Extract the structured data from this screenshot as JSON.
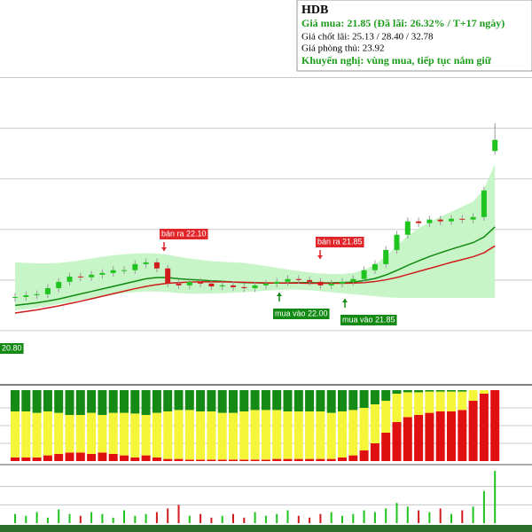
{
  "chart_data": [
    {
      "type": "candlestick",
      "open": [
        21.3,
        21.33,
        21.4,
        21.44,
        21.68,
        21.93,
        22.14,
        22.11,
        22.21,
        22.28,
        22.39,
        22.39,
        22.63,
        22.7,
        22.46,
        21.86,
        21.79,
        21.93,
        21.86,
        21.75,
        21.79,
        21.72,
        21.68,
        21.79,
        21.86,
        21.93,
        22.04,
        22.0,
        21.93,
        21.79,
        21.86,
        21.93,
        22.04,
        22.39,
        22.63,
        23.19,
        23.79,
        24.32,
        24.25,
        24.39,
        24.32,
        24.42,
        24.39,
        24.49,
        27.1
      ],
      "high": [
        21.48,
        21.55,
        21.59,
        21.83,
        22.08,
        22.29,
        22.29,
        22.36,
        22.43,
        22.54,
        22.54,
        22.78,
        22.85,
        22.85,
        22.61,
        22.01,
        22.08,
        22.08,
        22.01,
        21.94,
        21.94,
        21.87,
        21.94,
        22.01,
        22.08,
        22.19,
        22.19,
        22.15,
        22.08,
        22.01,
        22.08,
        22.19,
        22.54,
        22.78,
        23.34,
        23.94,
        24.47,
        24.47,
        24.54,
        24.54,
        24.57,
        24.57,
        24.64,
        25.69,
        28.2
      ],
      "low": [
        21.15,
        21.18,
        21.25,
        21.29,
        21.53,
        21.78,
        21.96,
        21.96,
        22.06,
        22.13,
        22.24,
        22.24,
        22.48,
        22.31,
        21.71,
        21.64,
        21.64,
        21.71,
        21.6,
        21.6,
        21.57,
        21.53,
        21.53,
        21.64,
        21.71,
        21.78,
        21.85,
        21.78,
        21.64,
        21.64,
        21.71,
        21.78,
        21.89,
        22.24,
        22.48,
        23.04,
        23.64,
        24.1,
        24.1,
        24.17,
        24.17,
        24.24,
        24.24,
        24.34,
        26.95
      ],
      "close": [
        21.33,
        21.4,
        21.44,
        21.68,
        21.93,
        22.14,
        22.11,
        22.21,
        22.28,
        22.39,
        22.39,
        22.63,
        22.7,
        22.46,
        21.86,
        21.79,
        21.93,
        21.86,
        21.75,
        21.79,
        21.72,
        21.68,
        21.79,
        21.86,
        21.93,
        22.04,
        22.0,
        21.93,
        21.79,
        21.86,
        21.93,
        22.04,
        22.39,
        22.63,
        23.19,
        23.79,
        24.32,
        24.25,
        24.39,
        24.32,
        24.42,
        24.39,
        24.49,
        25.54,
        27.54
      ],
      "color_up": "#1fc41f",
      "color_down": "#d01c1c",
      "band": {
        "color": "#c8f5c8",
        "upper": [
          22.7,
          22.68,
          22.66,
          22.66,
          22.68,
          22.72,
          22.78,
          22.85,
          22.92,
          22.98,
          23.02,
          23.05,
          23.06,
          23.05,
          23.0,
          22.92,
          22.85,
          22.8,
          22.75,
          22.72,
          22.7,
          22.68,
          22.62,
          22.55,
          22.48,
          22.42,
          22.36,
          22.3,
          22.26,
          22.24,
          22.24,
          22.28,
          22.4,
          22.6,
          22.95,
          23.35,
          23.75,
          24.05,
          24.3,
          24.5,
          24.7,
          24.9,
          25.1,
          25.6,
          26.6
        ],
        "lower": [
          20.8,
          20.85,
          20.9,
          20.98,
          21.05,
          21.12,
          21.2,
          21.28,
          21.35,
          21.42,
          21.48,
          21.52,
          21.55,
          21.55,
          21.52,
          21.48,
          21.46,
          21.46,
          21.47,
          21.48,
          21.5,
          21.52,
          21.55,
          21.58,
          21.6,
          21.62,
          21.62,
          21.6,
          21.56,
          21.52,
          21.48,
          21.44,
          21.4,
          21.36,
          21.32,
          21.3,
          21.3,
          21.3,
          21.3,
          21.3,
          21.3,
          21.3,
          21.3,
          21.3,
          21.3
        ]
      },
      "lines": [
        {
          "color": "#108a10",
          "values": [
            21.0,
            21.05,
            21.1,
            21.17,
            21.25,
            21.35,
            21.45,
            21.55,
            21.65,
            21.75,
            21.85,
            21.95,
            22.05,
            22.1,
            22.1,
            22.05,
            22.02,
            22.0,
            21.97,
            21.95,
            21.92,
            21.9,
            21.89,
            21.88,
            21.88,
            21.89,
            21.9,
            21.9,
            21.89,
            21.89,
            21.9,
            21.92,
            21.98,
            22.06,
            22.2,
            22.38,
            22.58,
            22.76,
            22.93,
            23.08,
            23.22,
            23.35,
            23.48,
            23.7,
            24.1
          ]
        },
        {
          "color": "#d01c1c",
          "values": [
            20.7,
            20.76,
            20.82,
            20.9,
            20.98,
            21.07,
            21.16,
            21.26,
            21.36,
            21.46,
            21.56,
            21.66,
            21.75,
            21.82,
            21.87,
            21.9,
            21.92,
            21.93,
            21.93,
            21.93,
            21.92,
            21.91,
            21.9,
            21.89,
            21.88,
            21.88,
            21.88,
            21.87,
            21.87,
            21.87,
            21.87,
            21.88,
            21.9,
            21.94,
            22.01,
            22.1,
            22.22,
            22.34,
            22.46,
            22.58,
            22.7,
            22.81,
            22.92,
            23.08,
            23.35
          ]
        }
      ],
      "annotations": [
        {
          "text": "bán ra 22.10",
          "color": "#e0262a"
        },
        {
          "text": "bán ra 21.85",
          "color": "#e0262a"
        },
        {
          "text": "mua vào 22.00",
          "color": "#138a13"
        },
        {
          "text": "mua vào 21.85",
          "color": "#138a13"
        },
        {
          "text": "20.80",
          "color": "#138a13"
        }
      ],
      "ylim": [
        18,
        31
      ],
      "yticks": [
        20,
        22,
        24,
        26,
        28,
        30
      ],
      "grid": true
    },
    {
      "type": "stacked_bar",
      "series": [
        {
          "color": "#e01010",
          "values": [
            5,
            5,
            5,
            8,
            10,
            12,
            12,
            10,
            12,
            10,
            8,
            5,
            8,
            5,
            3,
            3,
            2,
            2,
            2,
            2,
            2,
            2,
            2,
            2,
            3,
            3,
            3,
            3,
            3,
            3,
            5,
            8,
            15,
            25,
            40,
            55,
            62,
            65,
            68,
            70,
            70,
            72,
            85,
            95,
            100
          ]
        },
        {
          "color": "#f5f53a",
          "values": [
            65,
            65,
            63,
            62,
            58,
            53,
            53,
            58,
            53,
            58,
            60,
            62,
            57,
            63,
            67,
            69,
            70,
            68,
            68,
            66,
            66,
            68,
            70,
            70,
            69,
            67,
            67,
            67,
            67,
            65,
            65,
            64,
            60,
            55,
            45,
            40,
            35,
            32,
            30,
            28,
            28,
            26,
            15,
            5,
            0
          ]
        },
        {
          "color": "#158a15",
          "values": [
            30,
            30,
            32,
            30,
            32,
            35,
            35,
            32,
            35,
            32,
            32,
            33,
            35,
            32,
            30,
            28,
            28,
            30,
            30,
            32,
            32,
            30,
            28,
            28,
            28,
            30,
            30,
            30,
            30,
            32,
            30,
            28,
            25,
            20,
            15,
            5,
            3,
            3,
            2,
            2,
            2,
            2,
            0,
            0,
            0
          ]
        }
      ],
      "ylim": [
        0,
        100
      ],
      "yticks": [
        25,
        50,
        75
      ],
      "grid": true
    },
    {
      "type": "volume",
      "values": [
        10,
        8,
        12,
        6,
        15,
        10,
        8,
        12,
        10,
        6,
        14,
        8,
        10,
        12,
        16,
        20,
        8,
        10,
        6,
        8,
        10,
        6,
        12,
        8,
        10,
        14,
        8,
        6,
        10,
        12,
        8,
        10,
        14,
        12,
        16,
        22,
        18,
        14,
        12,
        16,
        10,
        14,
        18,
        35,
        57
      ],
      "ylim": [
        0,
        60
      ],
      "yticks": [
        20,
        40
      ],
      "grid": true
    }
  ],
  "info": {
    "title": "HDB",
    "buy": "Giá mua: 21.85 (Đã lãi: 26.32% / T+17 ngày)",
    "take_profit": "Giá chốt lãi: 25.13 / 28.40 / 32.78",
    "stop": "Giá phòng thủ: 23.92",
    "advice": "Khuyến nghị: vùng mua, tiếp tục nắm giữ"
  }
}
